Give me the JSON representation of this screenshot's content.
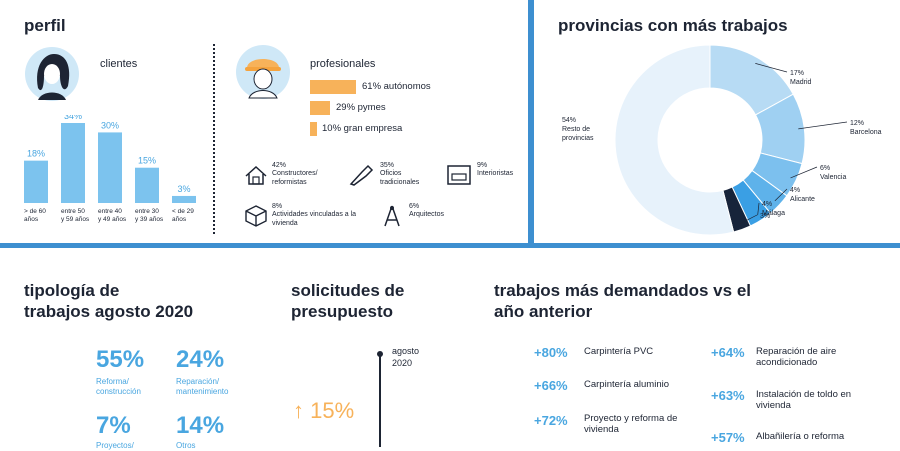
{
  "colors": {
    "accent": "#49a6e0",
    "bar": "#7cc3ee",
    "orange": "#f7b25a",
    "dark": "#1d2433",
    "divider": "#3d8fd0"
  },
  "perfil": {
    "title": "perfil",
    "clientes_title": "clientes",
    "profesionales_title": "profesionales",
    "prof_bars": [
      {
        "label": "61% autónomos",
        "value": 61
      },
      {
        "label": "29% pymes",
        "value": 29
      },
      {
        "label": "10% gran empresa",
        "value": 10
      }
    ],
    "categorias": [
      {
        "pct": "42%",
        "label": "Constructores/ reformistas",
        "icon": "house-tools-icon"
      },
      {
        "pct": "35%",
        "label": "Oficios tradicionales",
        "icon": "trowel-icon"
      },
      {
        "pct": "9%",
        "label": "Interioristas",
        "icon": "sofa-icon"
      },
      {
        "pct": "8%",
        "label": "Actividades vinculadas a la vivienda",
        "icon": "box-tools-icon"
      },
      {
        "pct": "6%",
        "label": "Arquitectos",
        "icon": "compass-icon"
      }
    ]
  },
  "chart_data": [
    {
      "type": "bar",
      "title": "clientes",
      "categories": [
        "> de 60 años",
        "entre 50 y 59 años",
        "entre 40 y 49 años",
        "entre 30 y 39 años",
        "< de 29 años"
      ],
      "values": [
        18,
        34,
        30,
        15,
        3
      ],
      "labels": [
        "18%",
        "34%",
        "30%",
        "15%",
        "3%"
      ],
      "ylim": [
        0,
        34
      ]
    },
    {
      "type": "pie",
      "title": "provincias con más trabajos",
      "categories": [
        "Madrid",
        "Barcelona",
        "Valencia",
        "Alicante",
        "Málaga",
        "",
        "Resto de provincias"
      ],
      "values": [
        17,
        12,
        6,
        4,
        4,
        3,
        54
      ],
      "labels": [
        "17%",
        "12%",
        "6%",
        "4%",
        "4%",
        "3%",
        "54%"
      ]
    }
  ],
  "donut_labels": [
    {
      "pct": "17%",
      "name": "Madrid"
    },
    {
      "pct": "12%",
      "name": "Barcelona"
    },
    {
      "pct": "6%",
      "name": "Valencia"
    },
    {
      "pct": "4%",
      "name": "Alicante"
    },
    {
      "pct": "4%",
      "name": "Málaga"
    },
    {
      "pct": "3%",
      "name": ""
    },
    {
      "pct": "54%",
      "name": "Resto de provincias"
    }
  ],
  "provincias_title": "provincias con más trabajos",
  "tipologia": {
    "title_line1": "tipología de",
    "title_line2": "trabajos agosto 2020",
    "items": [
      {
        "pct": "55%",
        "label_line1": "Reforma/",
        "label_line2": "construcción"
      },
      {
        "pct": "24%",
        "label_line1": "Reparación/",
        "label_line2": "mantenimiento"
      },
      {
        "pct": "7%",
        "label_line1": "Proyectos/",
        "label_line2": ""
      },
      {
        "pct": "14%",
        "label_line1": "Otros",
        "label_line2": ""
      }
    ]
  },
  "solicitudes": {
    "title_line1": "solicitudes de",
    "title_line2": "presupuesto",
    "period_line1": "agosto",
    "period_line2": "2020",
    "value": "↑ 15%"
  },
  "trabajos": {
    "title_line1": "trabajos más demandados vs el",
    "title_line2": "año anterior",
    "items": [
      {
        "pct": "+80%",
        "label": "Carpintería PVC"
      },
      {
        "pct": "+66%",
        "label": "Carpintería aluminio"
      },
      {
        "pct": "+72%",
        "label": "Proyecto y reforma de vivienda"
      },
      {
        "pct": "+64%",
        "label": "Reparación de aire acondicionado"
      },
      {
        "pct": "+63%",
        "label": "Instalación de toldo en vivienda"
      },
      {
        "pct": "+57%",
        "label": "Albañilería o reforma"
      }
    ]
  }
}
